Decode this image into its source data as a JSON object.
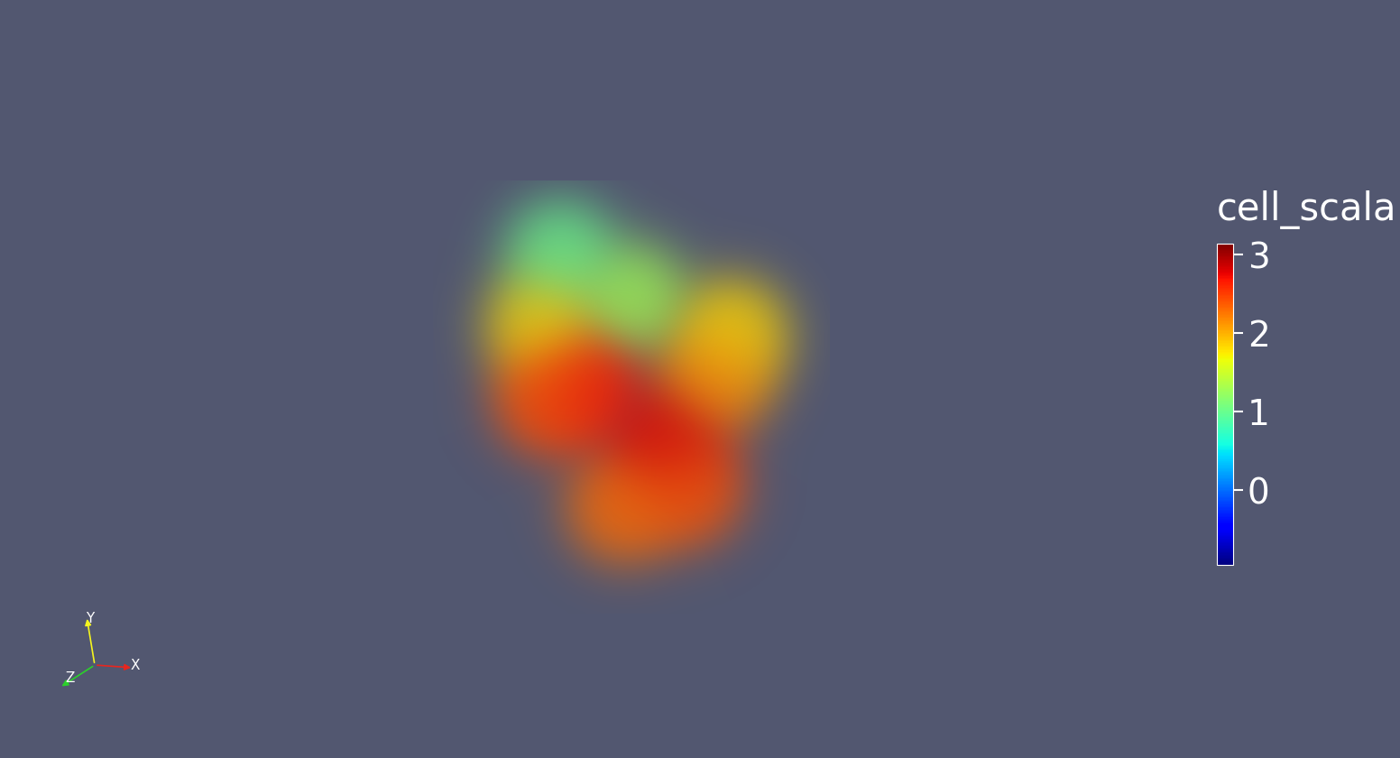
{
  "chart_data": {
    "type": "volume",
    "colorbar": {
      "title": "cell_scala",
      "range": [
        -0.95,
        3.14
      ],
      "ticks": [
        0,
        1,
        2,
        3
      ]
    },
    "axes_labels": [
      "X",
      "Y",
      "Z"
    ],
    "points": [
      {
        "x": -1.3,
        "y": 1.1,
        "value": 2.7
      },
      {
        "x": 0.9,
        "y": -0.45,
        "value": 2.8
      },
      {
        "x": -0.25,
        "y": -2.25,
        "value": 2.3
      },
      {
        "x": 2.25,
        "y": 1.25,
        "value": 2.2
      },
      {
        "x": -2.5,
        "y": 2.75,
        "value": 1.8
      },
      {
        "x": 0.0,
        "y": 3.5,
        "value": 1.3
      },
      {
        "x": -2.0,
        "y": 4.75,
        "value": 1.0
      },
      {
        "x": -2.25,
        "y": 0.75,
        "value": 2.4
      },
      {
        "x": 2.75,
        "y": 2.5,
        "value": 1.8
      },
      {
        "x": 1.5,
        "y": -1.75,
        "value": 2.4
      }
    ]
  }
}
